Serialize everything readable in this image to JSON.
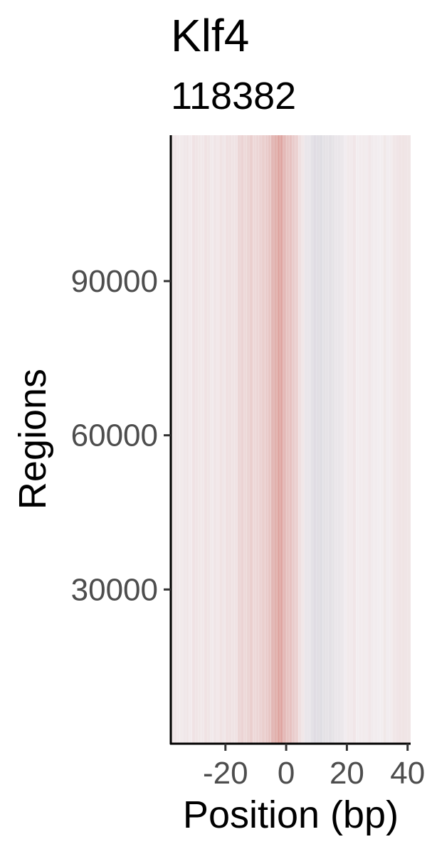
{
  "chart_data": {
    "type": "heatmap",
    "title": "Klf4",
    "subtitle": "118382",
    "xlabel": "Position (bp)",
    "ylabel": "Regions",
    "xlim": [
      -38,
      41
    ],
    "ylim": [
      0,
      118382
    ],
    "x_ticks": [
      -20,
      0,
      20,
      40
    ],
    "y_ticks": [
      30000,
      60000,
      90000
    ],
    "grid": false,
    "legend": "none",
    "colors": {
      "positive": "#c0392b",
      "negative": "#5b6b8c",
      "neutral": "#f3eef0"
    },
    "column_profile": {
      "x": [
        -38,
        -30,
        -22,
        -16,
        -14,
        -12,
        -10,
        -8,
        -6,
        -4,
        -2,
        -1,
        0,
        2,
        4,
        6,
        8,
        10,
        12,
        14,
        16,
        18,
        20,
        30,
        40,
        41
      ],
      "value": [
        0.06,
        0.07,
        0.08,
        0.15,
        0.22,
        0.25,
        0.22,
        0.25,
        0.35,
        0.5,
        0.75,
        0.55,
        0.45,
        0.35,
        0.25,
        -0.05,
        -0.15,
        -0.2,
        -0.2,
        -0.15,
        -0.1,
        -0.05,
        0.02,
        0.03,
        0.05,
        0.05
      ]
    }
  }
}
